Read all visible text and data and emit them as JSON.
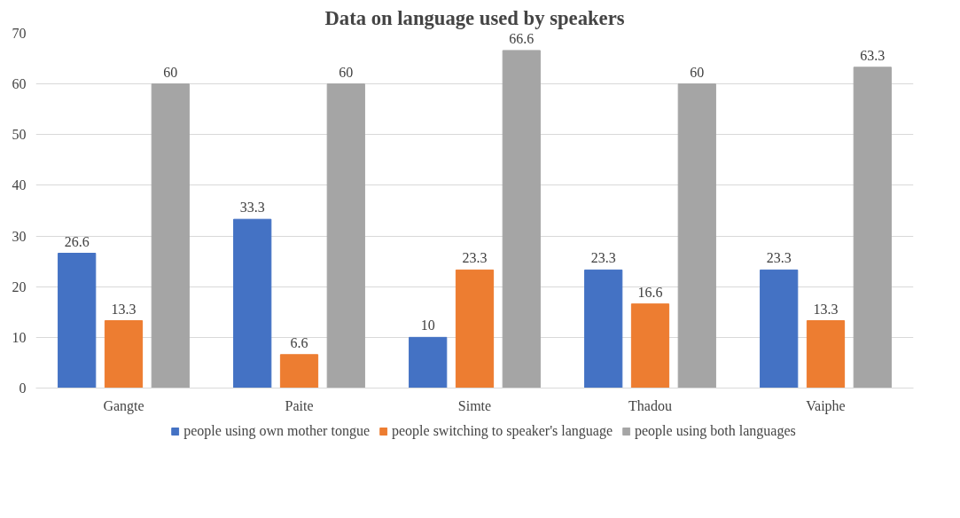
{
  "chart_data": {
    "type": "bar",
    "title": "Data on language used by speakers",
    "categories": [
      "Gangte",
      "Paite",
      "Simte",
      "Thadou",
      "Vaiphe"
    ],
    "series": [
      {
        "name": "people using own mother tongue",
        "color": "#4472c4",
        "values": [
          26.6,
          33.3,
          10,
          23.3,
          23.3
        ]
      },
      {
        "name": "people switching to speaker's language",
        "color": "#ed7d31",
        "values": [
          13.3,
          6.6,
          23.3,
          16.6,
          13.3
        ]
      },
      {
        "name": "people using both languages",
        "color": "#a5a5a5",
        "values": [
          60,
          60,
          66.6,
          60,
          63.3
        ]
      }
    ],
    "ylim": [
      0,
      70
    ],
    "yticks": [
      0,
      10,
      20,
      30,
      40,
      50,
      60,
      70
    ],
    "grid": "y",
    "legend": "bottom",
    "data_labels": true
  }
}
